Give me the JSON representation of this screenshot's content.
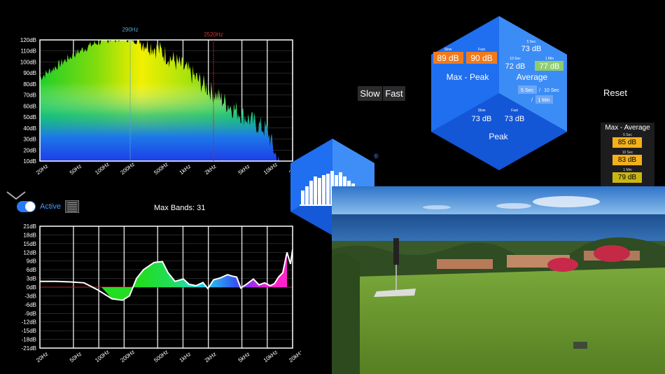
{
  "spectrum": {
    "y_ticks": [
      "120dB",
      "110dB",
      "100dB",
      "90dB",
      "80dB",
      "70dB",
      "60dB",
      "50dB",
      "40dB",
      "30dB",
      "20dB",
      "10dB"
    ],
    "x_ticks": [
      "20Hz",
      "50Hz",
      "100Hz",
      "200Hz",
      "500Hz",
      "1kHz",
      "2kHz",
      "5kHz",
      "10kHz",
      "20kHz"
    ],
    "marker_blue": "290Hz",
    "marker_red": "2520Hz"
  },
  "eq": {
    "y_ticks": [
      "21dB",
      "18dB",
      "15dB",
      "12dB",
      "9dB",
      "6dB",
      "3dB",
      "0dB",
      "-3dB",
      "-6dB",
      "-9dB",
      "-12dB",
      "-15dB",
      "-18dB",
      "-21dB"
    ],
    "x_ticks": [
      "20Hz",
      "50Hz",
      "100Hz",
      "200Hz",
      "500Hz",
      "1kHz",
      "2kHz",
      "5kHz",
      "10kHz",
      "20kHz"
    ],
    "max_bands": "Max Bands: 31"
  },
  "controls": {
    "active_label": "Active",
    "slow_label": "Slow",
    "fast_label": "Fast",
    "reset_label": "Reset"
  },
  "meter": {
    "max_peak": {
      "title": "Max - Peak",
      "slow_label": "Slow",
      "fast_label": "Fast",
      "slow_value": "89 dB",
      "fast_value": "90 dB"
    },
    "average": {
      "title": "Average",
      "top_label": "5 Sec",
      "top_value": "73 dB",
      "left_label": "10 Sec",
      "left_value": "72 dB",
      "right_label": "1 Min",
      "right_value": "77 dB",
      "btn_5sec": "5 Sec",
      "btn_10sec": "10 Sec",
      "btn_1min": "1 Min",
      "sep": "/"
    },
    "peak": {
      "title": "Peak",
      "slow_label": "Slow",
      "fast_label": "Fast",
      "slow_value": "73 dB",
      "fast_value": "73 dB"
    }
  },
  "max_average": {
    "title": "Max - Average",
    "items": [
      {
        "label": "5 Sec",
        "value": "85 dB",
        "color": "#f3b11a"
      },
      {
        "label": "10 Sec",
        "value": "83 dB",
        "color": "#f3b11a"
      },
      {
        "label": "1 Min",
        "value": "79 dB",
        "color": "#c9b613"
      }
    ]
  },
  "logo": {
    "registered": "®"
  },
  "colors": {
    "accent": "#2a7bf2",
    "hex_blue": "#1f6ff0",
    "orange": "#f07b1e",
    "green_badge": "#8fcd6e"
  }
}
